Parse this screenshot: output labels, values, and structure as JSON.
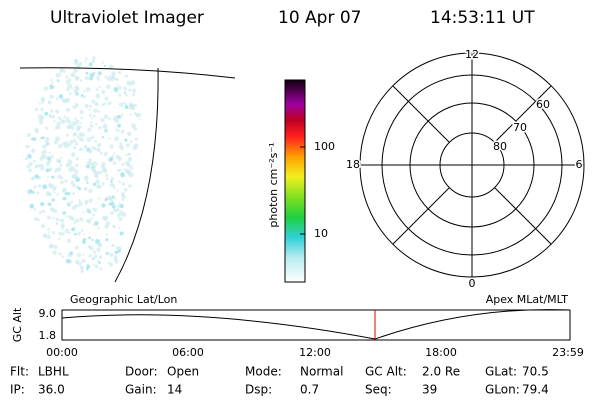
{
  "header": {
    "instrument": "Ultraviolet Imager",
    "date": "10 Apr 07",
    "time": "14:53:11 UT"
  },
  "colorbar": {
    "unit_label": "photon cm⁻²s⁻¹",
    "ticks": [
      "100",
      "10"
    ]
  },
  "polar": {
    "mlt_labels": [
      "12",
      "18",
      "6",
      "0"
    ],
    "lat_labels": [
      "60",
      "70",
      "80"
    ]
  },
  "track": {
    "left_title": "Geographic Lat/Lon",
    "right_title": "Apex MLat/MLT",
    "y_label": "GC Alt",
    "y_ticks": [
      "9.0",
      "1.8"
    ],
    "x_ticks": [
      "00:00",
      "06:00",
      "12:00",
      "18:00",
      "23:59"
    ]
  },
  "status": [
    [
      {
        "label": "Flt:",
        "value": "LBHL"
      },
      {
        "label": "Door:",
        "value": "Open"
      },
      {
        "label": "Mode:",
        "value": "Normal"
      },
      {
        "label": "GC Alt:",
        "value": "2.0 Re"
      },
      {
        "label": "GLat:",
        "value": "70.5"
      }
    ],
    [
      {
        "label": "IP:",
        "value": "36.0"
      },
      {
        "label": "Gain:",
        "value": "14"
      },
      {
        "label": "Dsp:",
        "value": "0.7"
      },
      {
        "label": "Seq:",
        "value": "39"
      },
      {
        "label": "GLon:",
        "value": "79.4"
      }
    ]
  ]
}
